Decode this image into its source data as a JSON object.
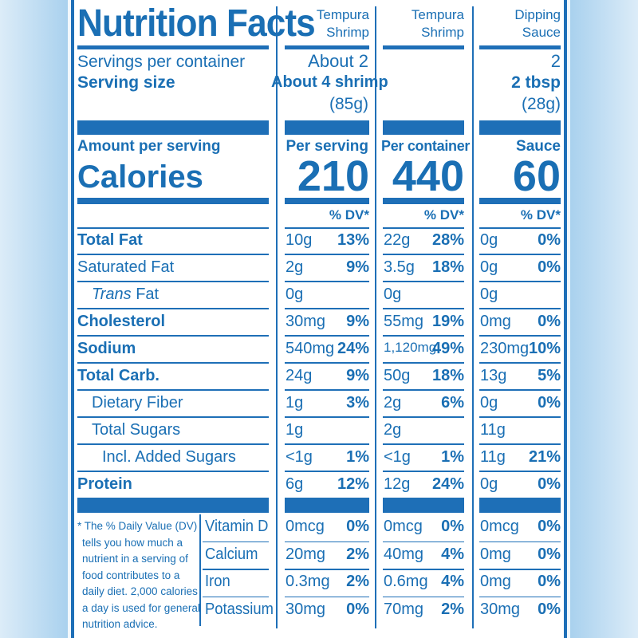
{
  "title": "Nutrition Facts",
  "columns": [
    {
      "name": "Tempura Shrimp",
      "servings": "About 2",
      "serving_size": "About 4 shrimp",
      "serving_weight": "(85g)",
      "amount_header": "Per serving",
      "calories": "210"
    },
    {
      "name": "Tempura Shrimp",
      "servings": "",
      "serving_size": "",
      "serving_weight": "",
      "amount_header": "Per container",
      "calories": "440"
    },
    {
      "name": "Dipping Sauce",
      "servings": "2",
      "serving_size": "2 tbsp",
      "serving_weight": "(28g)",
      "amount_header": "Sauce",
      "calories": "60"
    }
  ],
  "labels": {
    "servings_per_container": "Servings per container",
    "serving_size": "Serving size",
    "amount_per_serving": "Amount per serving",
    "calories": "Calories",
    "dv_header": "% DV*"
  },
  "nutrients": [
    {
      "name": "Total Fat",
      "bold": true,
      "indent": 0,
      "values": [
        [
          "10g",
          "13%"
        ],
        [
          "22g",
          "28%"
        ],
        [
          "0g",
          "0%"
        ]
      ]
    },
    {
      "name": "Saturated Fat",
      "bold": false,
      "indent": 0,
      "values": [
        [
          "2g",
          "9%"
        ],
        [
          "3.5g",
          "18%"
        ],
        [
          "0g",
          "0%"
        ]
      ]
    },
    {
      "name_prefix": "Trans",
      "name": " Fat",
      "bold": false,
      "indent": 1,
      "values": [
        [
          "0g",
          ""
        ],
        [
          "0g",
          ""
        ],
        [
          "0g",
          ""
        ]
      ]
    },
    {
      "name": "Cholesterol",
      "bold": true,
      "indent": 0,
      "values": [
        [
          "30mg",
          "9%"
        ],
        [
          "55mg",
          "19%"
        ],
        [
          "0mg",
          "0%"
        ]
      ]
    },
    {
      "name": "Sodium",
      "bold": true,
      "indent": 0,
      "values": [
        [
          "540mg",
          "24%"
        ],
        [
          "1,120mg",
          "49%"
        ],
        [
          "230mg",
          "10%"
        ]
      ]
    },
    {
      "name": "Total Carb.",
      "bold": true,
      "indent": 0,
      "values": [
        [
          "24g",
          "9%"
        ],
        [
          "50g",
          "18%"
        ],
        [
          "13g",
          "5%"
        ]
      ]
    },
    {
      "name": "Dietary Fiber",
      "bold": false,
      "indent": 1,
      "values": [
        [
          "1g",
          "3%"
        ],
        [
          "2g",
          "6%"
        ],
        [
          "0g",
          "0%"
        ]
      ]
    },
    {
      "name": "Total Sugars",
      "bold": false,
      "indent": 1,
      "values": [
        [
          "1g",
          ""
        ],
        [
          "2g",
          ""
        ],
        [
          "11g",
          ""
        ]
      ]
    },
    {
      "name": "Incl. Added Sugars",
      "bold": false,
      "indent": 2,
      "values": [
        [
          "<1g",
          "1%"
        ],
        [
          "<1g",
          "1%"
        ],
        [
          "11g",
          "21%"
        ]
      ]
    },
    {
      "name": "Protein",
      "bold": true,
      "indent": 0,
      "values": [
        [
          "6g",
          "12%"
        ],
        [
          "12g",
          "24%"
        ],
        [
          "0g",
          "0%"
        ]
      ]
    }
  ],
  "footnote": "* The % Daily Value (DV) tells you how much a nutrient in a serving of food contributes to a daily diet. 2,000 calories a day is used for general nutrition advice.",
  "footnote_lines": [
    "* The % Daily Value (DV)",
    "tells you how much a",
    "nutrient in a serving of",
    "food contributes to a",
    "daily diet. 2,000 calories",
    "a day is used for general",
    "nutrition advice."
  ],
  "vitamins": [
    {
      "name": "Vitamin D",
      "values": [
        [
          "0mcg",
          "0%"
        ],
        [
          "0mcg",
          "0%"
        ],
        [
          "0mcg",
          "0%"
        ]
      ]
    },
    {
      "name": "Calcium",
      "values": [
        [
          "20mg",
          "2%"
        ],
        [
          "40mg",
          "4%"
        ],
        [
          "0mg",
          "0%"
        ]
      ]
    },
    {
      "name": "Iron",
      "values": [
        [
          "0.3mg",
          "2%"
        ],
        [
          "0.6mg",
          "4%"
        ],
        [
          "0mg",
          "0%"
        ]
      ]
    },
    {
      "name": "Potassium",
      "values": [
        [
          "30mg",
          "0%"
        ],
        [
          "70mg",
          "2%"
        ],
        [
          "30mg",
          "0%"
        ]
      ]
    }
  ],
  "colors": {
    "ink": "#1a6fb4",
    "panel": "#ffffff",
    "edge": "#a9d1ee"
  }
}
